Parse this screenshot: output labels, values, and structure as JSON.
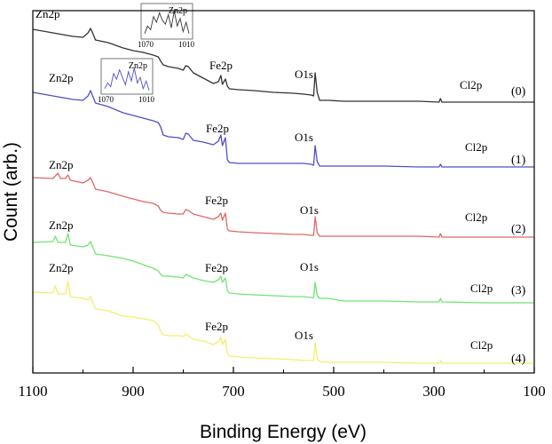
{
  "chart_data": {
    "type": "line",
    "xlabel": "Binding Energy (eV)",
    "ylabel": "Count (arb.)",
    "xlim": [
      1100,
      100
    ],
    "x_reversed": true,
    "xticks": [
      1100,
      900,
      700,
      500,
      300,
      100
    ],
    "yticks_shown": false,
    "grid": false,
    "legend": "none",
    "series": [
      {
        "name": "(0)",
        "color": "#333333",
        "peak_labels": [
          "Zn2p",
          "Fe2p",
          "O1s",
          "Cl2p"
        ],
        "inset": {
          "label": "Zn2p",
          "x_left": "1070",
          "x_right": "1010"
        },
        "points": [
          [
            1100,
            33
          ],
          [
            1060,
            37
          ],
          [
            1020,
            41
          ],
          [
            1000,
            42
          ],
          [
            990,
            37
          ],
          [
            985,
            32
          ],
          [
            980,
            38
          ],
          [
            975,
            45
          ],
          [
            950,
            48
          ],
          [
            920,
            54
          ],
          [
            900,
            57
          ],
          [
            880,
            59
          ],
          [
            860,
            62
          ],
          [
            850,
            64
          ],
          [
            845,
            69
          ],
          [
            840,
            73
          ],
          [
            830,
            75
          ],
          [
            810,
            77
          ],
          [
            800,
            79
          ],
          [
            795,
            74
          ],
          [
            790,
            75
          ],
          [
            780,
            82
          ],
          [
            760,
            88
          ],
          [
            740,
            94
          ],
          [
            730,
            92
          ],
          [
            725,
            85
          ],
          [
            722,
            95
          ],
          [
            716,
            89
          ],
          [
            712,
            97
          ],
          [
            708,
            100
          ],
          [
            690,
            101
          ],
          [
            660,
            102
          ],
          [
            620,
            104
          ],
          [
            580,
            105
          ],
          [
            560,
            106
          ],
          [
            545,
            107
          ],
          [
            540,
            108
          ],
          [
            537,
            82
          ],
          [
            533,
            104
          ],
          [
            528,
            113
          ],
          [
            510,
            113
          ],
          [
            480,
            114
          ],
          [
            400,
            114
          ],
          [
            330,
            114
          ],
          [
            290,
            115
          ],
          [
            287,
            111
          ],
          [
            284,
            115
          ],
          [
            200,
            115
          ],
          [
            100,
            115
          ]
        ]
      },
      {
        "name": "(1)",
        "color": "#4f4fc8",
        "peak_labels": [
          "Zn2p",
          "Fe2p",
          "O1s",
          "Cl2p"
        ],
        "inset": {
          "label": "Zn2p",
          "x_left": "1070",
          "x_right": "1010"
        },
        "points": [
          [
            1100,
            104
          ],
          [
            1060,
            108
          ],
          [
            1020,
            112
          ],
          [
            1000,
            113
          ],
          [
            990,
            108
          ],
          [
            985,
            102
          ],
          [
            980,
            109
          ],
          [
            975,
            116
          ],
          [
            950,
            120
          ],
          [
            920,
            127
          ],
          [
            900,
            130
          ],
          [
            880,
            133
          ],
          [
            860,
            136
          ],
          [
            850,
            138
          ],
          [
            845,
            143
          ],
          [
            840,
            152
          ],
          [
            830,
            154
          ],
          [
            810,
            155
          ],
          [
            800,
            157
          ],
          [
            795,
            150
          ],
          [
            790,
            151
          ],
          [
            780,
            158
          ],
          [
            760,
            160
          ],
          [
            740,
            163
          ],
          [
            730,
            159
          ],
          [
            725,
            152
          ],
          [
            722,
            164
          ],
          [
            716,
            155
          ],
          [
            712,
            180
          ],
          [
            708,
            183
          ],
          [
            690,
            184
          ],
          [
            660,
            184
          ],
          [
            620,
            184
          ],
          [
            580,
            184
          ],
          [
            560,
            184
          ],
          [
            545,
            185
          ],
          [
            540,
            186
          ],
          [
            537,
            164
          ],
          [
            533,
            182
          ],
          [
            528,
            187
          ],
          [
            510,
            187
          ],
          [
            480,
            187
          ],
          [
            400,
            187
          ],
          [
            330,
            188
          ],
          [
            290,
            188
          ],
          [
            287,
            185
          ],
          [
            284,
            188
          ],
          [
            200,
            188
          ],
          [
            100,
            188
          ]
        ]
      },
      {
        "name": "(2)",
        "color": "#e06767",
        "peak_labels": [
          "Zn2p",
          "Fe2p",
          "O1s",
          "Cl2p"
        ],
        "points": [
          [
            1100,
            200
          ],
          [
            1060,
            201
          ],
          [
            1050,
            195
          ],
          [
            1045,
            201
          ],
          [
            1035,
            201
          ],
          [
            1030,
            197
          ],
          [
            1025,
            203
          ],
          [
            1000,
            206
          ],
          [
            990,
            203
          ],
          [
            985,
            200
          ],
          [
            980,
            206
          ],
          [
            975,
            213
          ],
          [
            950,
            216
          ],
          [
            920,
            221
          ],
          [
            900,
            224
          ],
          [
            880,
            227
          ],
          [
            860,
            229
          ],
          [
            850,
            232
          ],
          [
            845,
            237
          ],
          [
            840,
            239
          ],
          [
            830,
            240
          ],
          [
            810,
            241
          ],
          [
            800,
            241
          ],
          [
            795,
            236
          ],
          [
            790,
            237
          ],
          [
            780,
            241
          ],
          [
            760,
            244
          ],
          [
            740,
            247
          ],
          [
            730,
            244
          ],
          [
            725,
            240
          ],
          [
            722,
            248
          ],
          [
            716,
            240
          ],
          [
            712,
            258
          ],
          [
            708,
            260
          ],
          [
            690,
            261
          ],
          [
            660,
            262
          ],
          [
            620,
            263
          ],
          [
            580,
            264
          ],
          [
            560,
            264
          ],
          [
            545,
            265
          ],
          [
            540,
            265
          ],
          [
            537,
            244
          ],
          [
            533,
            262
          ],
          [
            528,
            266
          ],
          [
            510,
            266
          ],
          [
            480,
            266
          ],
          [
            400,
            266
          ],
          [
            330,
            266
          ],
          [
            290,
            267
          ],
          [
            287,
            263
          ],
          [
            284,
            267
          ],
          [
            200,
            267
          ],
          [
            100,
            267
          ]
        ]
      },
      {
        "name": "(3)",
        "color": "#72e472",
        "peak_labels": [
          "Zn2p",
          "Fe2p",
          "O1s",
          "Cl2p"
        ],
        "points": [
          [
            1100,
            273
          ],
          [
            1060,
            272
          ],
          [
            1055,
            266
          ],
          [
            1050,
            273
          ],
          [
            1035,
            273
          ],
          [
            1030,
            263
          ],
          [
            1025,
            276
          ],
          [
            1000,
            278
          ],
          [
            990,
            276
          ],
          [
            985,
            272
          ],
          [
            980,
            279
          ],
          [
            975,
            286
          ],
          [
            950,
            288
          ],
          [
            920,
            291
          ],
          [
            900,
            294
          ],
          [
            880,
            298
          ],
          [
            860,
            302
          ],
          [
            850,
            305
          ],
          [
            845,
            309
          ],
          [
            840,
            311
          ],
          [
            830,
            311
          ],
          [
            810,
            312
          ],
          [
            800,
            313
          ],
          [
            795,
            309
          ],
          [
            790,
            310
          ],
          [
            780,
            313
          ],
          [
            760,
            316
          ],
          [
            740,
            318
          ],
          [
            730,
            315
          ],
          [
            725,
            311
          ],
          [
            722,
            318
          ],
          [
            716,
            313
          ],
          [
            712,
            327
          ],
          [
            708,
            330
          ],
          [
            690,
            331
          ],
          [
            660,
            332
          ],
          [
            620,
            333
          ],
          [
            580,
            334
          ],
          [
            560,
            334
          ],
          [
            545,
            335
          ],
          [
            540,
            335
          ],
          [
            537,
            318
          ],
          [
            533,
            333
          ],
          [
            528,
            336
          ],
          [
            510,
            336
          ],
          [
            480,
            339
          ],
          [
            400,
            339
          ],
          [
            330,
            340
          ],
          [
            290,
            340
          ],
          [
            287,
            336
          ],
          [
            284,
            340
          ],
          [
            200,
            341
          ],
          [
            100,
            341
          ]
        ]
      },
      {
        "name": "(4)",
        "color": "#f2ee6e",
        "peak_labels": [
          "Zn2p",
          "Fe2p",
          "O1s",
          "Cl2p"
        ],
        "points": [
          [
            1100,
            329
          ],
          [
            1060,
            330
          ],
          [
            1055,
            322
          ],
          [
            1050,
            331
          ],
          [
            1035,
            331
          ],
          [
            1030,
            317
          ],
          [
            1025,
            334
          ],
          [
            1000,
            336
          ],
          [
            990,
            338
          ],
          [
            985,
            334
          ],
          [
            980,
            341
          ],
          [
            975,
            348
          ],
          [
            950,
            350
          ],
          [
            920,
            356
          ],
          [
            900,
            357
          ],
          [
            880,
            359
          ],
          [
            860,
            361
          ],
          [
            850,
            366
          ],
          [
            845,
            373
          ],
          [
            840,
            377
          ],
          [
            830,
            378
          ],
          [
            810,
            378
          ],
          [
            800,
            379
          ],
          [
            795,
            376
          ],
          [
            790,
            378
          ],
          [
            780,
            382
          ],
          [
            760,
            384
          ],
          [
            740,
            388
          ],
          [
            730,
            385
          ],
          [
            725,
            380
          ],
          [
            722,
            388
          ],
          [
            716,
            382
          ],
          [
            712,
            398
          ],
          [
            708,
            401
          ],
          [
            690,
            402
          ],
          [
            660,
            403
          ],
          [
            620,
            404
          ],
          [
            580,
            405
          ],
          [
            560,
            406
          ],
          [
            545,
            406
          ],
          [
            540,
            406
          ],
          [
            537,
            386
          ],
          [
            533,
            404
          ],
          [
            528,
            407
          ],
          [
            510,
            408
          ],
          [
            480,
            408
          ],
          [
            400,
            408
          ],
          [
            330,
            409
          ],
          [
            290,
            409
          ],
          [
            287,
            406
          ],
          [
            284,
            409
          ],
          [
            200,
            409
          ],
          [
            100,
            409
          ]
        ]
      }
    ]
  }
}
